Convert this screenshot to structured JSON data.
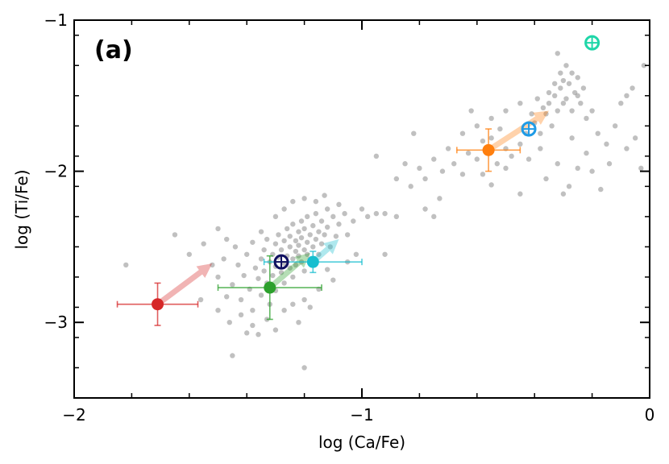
{
  "chart_data": {
    "type": "scatter",
    "panel_label": "(a)",
    "xlabel": "log (Ca/Fe)",
    "ylabel": "log (Ti/Fe)",
    "xlim": [
      -2,
      0
    ],
    "ylim": [
      -3.5,
      -1
    ],
    "x_ticks": [
      -2,
      -1,
      0
    ],
    "x_tick_labels": [
      "−2",
      "−1",
      "0"
    ],
    "y_ticks": [
      -3,
      -2,
      -1
    ],
    "y_tick_labels": [
      "−3",
      "−2",
      "−1"
    ],
    "grid": false,
    "legend": "none",
    "colors": {
      "background_points": "#8c8c8c",
      "red": "#d62728",
      "green": "#2ca02c",
      "cyan": "#17becf",
      "orange": "#ff7f0e",
      "blue": "#1f9be6",
      "teal": "#1fd6a8",
      "navy": "#101060"
    },
    "highlighted": [
      {
        "color": "red",
        "x": -1.71,
        "y": -2.88,
        "xerr": 0.14,
        "yerr": 0.14,
        "marker": "filled"
      },
      {
        "color": "green",
        "x": -1.32,
        "y": -2.77,
        "xerr": 0.18,
        "yerr": 0.21,
        "marker": "filled"
      },
      {
        "color": "cyan",
        "x": -1.17,
        "y": -2.6,
        "xerr": 0.17,
        "yerr": 0.07,
        "marker": "filled"
      },
      {
        "color": "navy",
        "x": -1.28,
        "y": -2.6,
        "marker": "circle-plus"
      },
      {
        "color": "orange",
        "x": -0.56,
        "y": -1.86,
        "xerr": 0.11,
        "yerr": 0.14,
        "marker": "filled"
      },
      {
        "color": "blue",
        "x": -0.42,
        "y": -1.72,
        "marker": "circle-plus"
      },
      {
        "color": "teal",
        "x": -0.2,
        "y": -1.15,
        "marker": "circle-plus"
      }
    ],
    "arrows": [
      {
        "color": "red",
        "from": [
          -1.71,
          -2.88
        ],
        "to": [
          -1.52,
          -2.61
        ]
      },
      {
        "color": "green",
        "from": [
          -1.32,
          -2.77
        ],
        "to": [
          -1.18,
          -2.54
        ]
      },
      {
        "color": "cyan",
        "from": [
          -1.17,
          -2.6
        ],
        "to": [
          -1.08,
          -2.45
        ]
      },
      {
        "color": "orange",
        "from": [
          -0.56,
          -1.86
        ],
        "to": [
          -0.35,
          -1.6
        ]
      }
    ],
    "background_points": [
      [
        -1.82,
        -2.62
      ],
      [
        -1.65,
        -2.42
      ],
      [
        -1.6,
        -2.55
      ],
      [
        -1.55,
        -2.48
      ],
      [
        -1.52,
        -2.62
      ],
      [
        -1.5,
        -2.7
      ],
      [
        -1.48,
        -2.58
      ],
      [
        -1.47,
        -2.83
      ],
      [
        -1.45,
        -2.75
      ],
      [
        -1.44,
        -2.5
      ],
      [
        -1.43,
        -2.62
      ],
      [
        -1.42,
        -2.85
      ],
      [
        -1.41,
        -2.69
      ],
      [
        -1.4,
        -2.55
      ],
      [
        -1.39,
        -2.78
      ],
      [
        -1.38,
        -2.47
      ],
      [
        -1.38,
        -2.92
      ],
      [
        -1.37,
        -2.64
      ],
      [
        -1.36,
        -2.71
      ],
      [
        -1.35,
        -2.58
      ],
      [
        -1.35,
        -2.82
      ],
      [
        -1.34,
        -2.52
      ],
      [
        -1.34,
        -2.66
      ],
      [
        -1.33,
        -2.74
      ],
      [
        -1.33,
        -2.45
      ],
      [
        -1.32,
        -2.6
      ],
      [
        -1.32,
        -2.88
      ],
      [
        -1.31,
        -2.55
      ],
      [
        -1.31,
        -2.69
      ],
      [
        -1.3,
        -2.48
      ],
      [
        -1.3,
        -2.63
      ],
      [
        -1.3,
        -2.79
      ],
      [
        -1.29,
        -2.57
      ],
      [
        -1.29,
        -2.42
      ],
      [
        -1.28,
        -2.67
      ],
      [
        -1.28,
        -2.52
      ],
      [
        -1.27,
        -2.61
      ],
      [
        -1.27,
        -2.74
      ],
      [
        -1.27,
        -2.46
      ],
      [
        -1.26,
        -2.56
      ],
      [
        -1.26,
        -2.38
      ],
      [
        -1.25,
        -2.64
      ],
      [
        -1.25,
        -2.5
      ],
      [
        -1.25,
        -2.43
      ],
      [
        -1.24,
        -2.58
      ],
      [
        -1.24,
        -2.7
      ],
      [
        -1.24,
        -2.35
      ],
      [
        -1.23,
        -2.53
      ],
      [
        -1.23,
        -2.46
      ],
      [
        -1.23,
        -2.62
      ],
      [
        -1.22,
        -2.4
      ],
      [
        -1.22,
        -2.56
      ],
      [
        -1.22,
        -2.49
      ],
      [
        -1.21,
        -2.33
      ],
      [
        -1.21,
        -2.6
      ],
      [
        -1.21,
        -2.44
      ],
      [
        -1.2,
        -2.52
      ],
      [
        -1.2,
        -2.38
      ],
      [
        -1.2,
        -2.66
      ],
      [
        -1.19,
        -2.47
      ],
      [
        -1.19,
        -2.55
      ],
      [
        -1.19,
        -2.3
      ],
      [
        -1.18,
        -2.42
      ],
      [
        -1.18,
        -2.58
      ],
      [
        -1.17,
        -2.36
      ],
      [
        -1.17,
        -2.5
      ],
      [
        -1.16,
        -2.45
      ],
      [
        -1.16,
        -2.28
      ],
      [
        -1.15,
        -2.4
      ],
      [
        -1.15,
        -2.55
      ],
      [
        -1.14,
        -2.33
      ],
      [
        -1.14,
        -2.48
      ],
      [
        -1.13,
        -2.42
      ],
      [
        -1.12,
        -2.25
      ],
      [
        -1.12,
        -2.37
      ],
      [
        -1.11,
        -2.5
      ],
      [
        -1.1,
        -2.3
      ],
      [
        -1.09,
        -2.43
      ],
      [
        -1.08,
        -2.35
      ],
      [
        -1.06,
        -2.28
      ],
      [
        -1.05,
        -2.42
      ],
      [
        -1.03,
        -2.33
      ],
      [
        -1.0,
        -2.25
      ],
      [
        -0.98,
        -2.3
      ],
      [
        -0.95,
        -2.28
      ],
      [
        -0.92,
        -2.55
      ],
      [
        -0.88,
        -2.3
      ],
      [
        -1.56,
        -2.85
      ],
      [
        -1.5,
        -2.92
      ],
      [
        -1.46,
        -3.0
      ],
      [
        -1.42,
        -2.95
      ],
      [
        -1.4,
        -3.07
      ],
      [
        -1.38,
        -3.02
      ],
      [
        -1.36,
        -3.08
      ],
      [
        -1.33,
        -2.98
      ],
      [
        -1.3,
        -3.05
      ],
      [
        -1.27,
        -2.92
      ],
      [
        -1.24,
        -2.88
      ],
      [
        -1.22,
        -3.0
      ],
      [
        -1.2,
        -2.85
      ],
      [
        -1.18,
        -2.9
      ],
      [
        -1.45,
        -3.22
      ],
      [
        -1.2,
        -3.3
      ],
      [
        -1.35,
        -2.4
      ],
      [
        -1.3,
        -2.3
      ],
      [
        -1.27,
        -2.25
      ],
      [
        -1.24,
        -2.2
      ],
      [
        -1.2,
        -2.18
      ],
      [
        -1.16,
        -2.2
      ],
      [
        -1.13,
        -2.16
      ],
      [
        -1.08,
        -2.22
      ],
      [
        -1.5,
        -2.38
      ],
      [
        -1.47,
        -2.45
      ],
      [
        -1.12,
        -2.65
      ],
      [
        -1.1,
        -2.72
      ],
      [
        -1.15,
        -2.78
      ],
      [
        -1.05,
        -2.6
      ],
      [
        -1.02,
        -2.55
      ],
      [
        -0.85,
        -1.95
      ],
      [
        -0.8,
        -1.98
      ],
      [
        -0.78,
        -2.05
      ],
      [
        -0.83,
        -2.1
      ],
      [
        -0.75,
        -1.92
      ],
      [
        -0.72,
        -2.0
      ],
      [
        -0.68,
        -1.95
      ],
      [
        -0.65,
        -2.02
      ],
      [
        -0.63,
        -1.88
      ],
      [
        -0.6,
        -1.92
      ],
      [
        -0.58,
        -1.8
      ],
      [
        -0.55,
        -1.78
      ],
      [
        -0.53,
        -1.95
      ],
      [
        -0.5,
        -1.85
      ],
      [
        -0.48,
        -1.9
      ],
      [
        -0.45,
        -1.82
      ],
      [
        -0.43,
        -1.75
      ],
      [
        -0.4,
        -1.68
      ],
      [
        -0.38,
        -1.75
      ],
      [
        -0.36,
        -1.62
      ],
      [
        -0.35,
        -1.55
      ],
      [
        -0.34,
        -1.7
      ],
      [
        -0.33,
        -1.5
      ],
      [
        -0.32,
        -1.6
      ],
      [
        -0.31,
        -1.45
      ],
      [
        -0.3,
        -1.55
      ],
      [
        -0.3,
        -1.4
      ],
      [
        -0.29,
        -1.52
      ],
      [
        -0.28,
        -1.42
      ],
      [
        -0.27,
        -1.6
      ],
      [
        -0.26,
        -1.48
      ],
      [
        -0.25,
        -1.38
      ],
      [
        -0.24,
        -1.55
      ],
      [
        -0.23,
        -1.45
      ],
      [
        -0.22,
        -1.65
      ],
      [
        -0.31,
        -1.35
      ],
      [
        -0.33,
        -1.42
      ],
      [
        -0.29,
        -1.3
      ],
      [
        -0.27,
        -1.35
      ],
      [
        -0.25,
        -1.5
      ],
      [
        -0.35,
        -1.48
      ],
      [
        -0.37,
        -1.58
      ],
      [
        -0.39,
        -1.52
      ],
      [
        -0.41,
        -1.62
      ],
      [
        -0.2,
        -1.6
      ],
      [
        -0.18,
        -1.75
      ],
      [
        -0.15,
        -1.82
      ],
      [
        -0.12,
        -1.7
      ],
      [
        -0.1,
        -1.55
      ],
      [
        -0.08,
        -1.5
      ],
      [
        -0.05,
        -1.78
      ],
      [
        -0.03,
        -1.98
      ],
      [
        -0.02,
        -1.3
      ],
      [
        -0.06,
        -1.45
      ],
      [
        -0.08,
        -1.85
      ],
      [
        -0.32,
        -1.22
      ],
      [
        -0.45,
        -1.55
      ],
      [
        -0.5,
        -1.6
      ],
      [
        -0.52,
        -1.72
      ],
      [
        -0.55,
        -1.65
      ],
      [
        -0.58,
        -2.02
      ],
      [
        -0.6,
        -1.7
      ],
      [
        -0.62,
        -1.6
      ],
      [
        -0.65,
        -1.75
      ],
      [
        -0.7,
        -1.85
      ],
      [
        -0.73,
        -2.18
      ],
      [
        -0.75,
        -2.3
      ],
      [
        -0.78,
        -2.25
      ],
      [
        -0.82,
        -1.75
      ],
      [
        -0.88,
        -2.05
      ],
      [
        -0.92,
        -2.28
      ],
      [
        -0.95,
        -1.9
      ],
      [
        -0.3,
        -2.15
      ],
      [
        -0.28,
        -2.1
      ],
      [
        -0.25,
        -1.98
      ],
      [
        -0.22,
        -1.88
      ],
      [
        -0.55,
        -2.09
      ],
      [
        -0.5,
        -1.98
      ],
      [
        -0.42,
        -1.92
      ],
      [
        -0.38,
        -1.85
      ],
      [
        -0.36,
        -2.05
      ],
      [
        -0.32,
        -1.95
      ],
      [
        -0.27,
        -1.78
      ],
      [
        -0.45,
        -2.15
      ],
      [
        -0.2,
        -2.0
      ],
      [
        -0.17,
        -2.12
      ],
      [
        -0.14,
        -1.95
      ]
    ]
  }
}
